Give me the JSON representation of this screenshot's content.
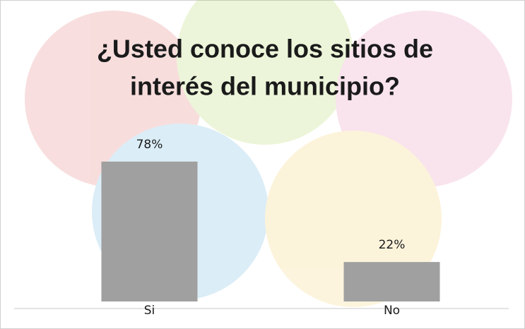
{
  "chart_data": {
    "type": "bar",
    "title_lines": [
      "¿Usted conoce los sitios de",
      "interés del municipio?"
    ],
    "categories": [
      "Si",
      "No"
    ],
    "values": [
      78,
      22
    ],
    "value_labels": [
      "78%",
      "22%"
    ],
    "color": "#a0a0a0"
  }
}
